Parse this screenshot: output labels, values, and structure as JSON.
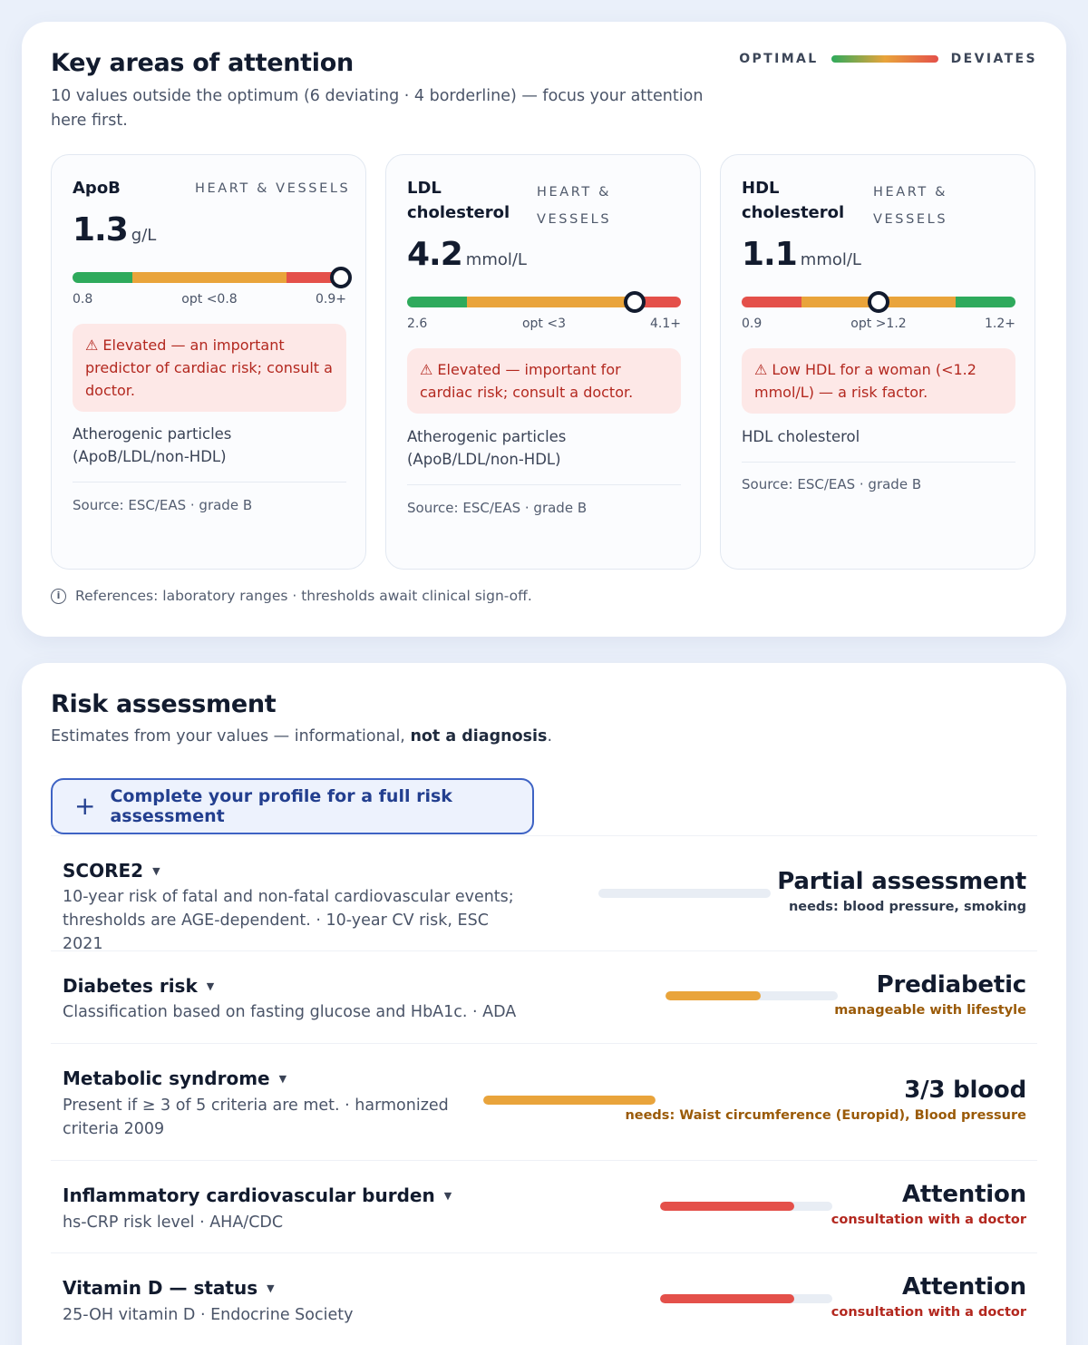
{
  "attention": {
    "title": "Key areas of attention",
    "subtitle": "10 values outside the optimum (6 deviating · 4 borderline) — focus your attention here first.",
    "legend": {
      "left": "OPTIMAL",
      "right": "DEVIATES"
    },
    "cards": [
      {
        "name": "ApoB",
        "category": "HEART & VESSELS",
        "value": "1.3",
        "unit": "g/L",
        "scale_min": "0.8",
        "scale_opt": "opt <0.8",
        "scale_max": "0.9+",
        "marker_fraction": 0.98,
        "alert": "⚠ Elevated — an important predictor of cardiac risk; consult a doctor.",
        "description": "Atherogenic particles (ApoB/LDL/non-HDL)",
        "source": "Source: ESC/EAS · grade B"
      },
      {
        "name": "LDL cholesterol",
        "category": "HEART & VESSELS",
        "value": "4.2",
        "unit": "mmol/L",
        "scale_min": "2.6",
        "scale_opt": "opt <3",
        "scale_max": "4.1+",
        "marker_fraction": 0.83,
        "alert": "⚠ Elevated — important for cardiac risk; consult a doctor.",
        "description": "Atherogenic particles (ApoB/LDL/non-HDL)",
        "source": "Source: ESC/EAS · grade B"
      },
      {
        "name": "HDL cholesterol",
        "category": "HEART & VESSELS",
        "value": "1.1",
        "unit": "mmol/L",
        "scale_min": "0.9",
        "scale_opt": "opt >1.2",
        "scale_max": "1.2+",
        "marker_fraction": 0.5,
        "alert": "⚠ Low HDL for a woman (<1.2 mmol/L) — a risk factor.",
        "description": "HDL cholesterol",
        "source": "Source: ESC/EAS · grade B"
      }
    ],
    "references": "References: laboratory ranges · thresholds await clinical sign-off."
  },
  "risk": {
    "title": "Risk assessment",
    "subtitle_pre": "Estimates from your values — informational, ",
    "subtitle_bold": "not a diagnosis",
    "subtitle_post": ".",
    "cta_label": "Complete your profile for a full risk assessment",
    "rows": [
      {
        "name": "SCORE2",
        "description": "10-year risk of fatal and non-fatal cardiovascular events; thresholds are AGE-dependent. · 10-year CV risk, ESC 2021",
        "status": "Partial assessment",
        "note": "needs: blood pressure, smoking",
        "fill_fraction": 0,
        "color": "#e8edf4",
        "note_color": "#2f3a4d"
      },
      {
        "name": "Diabetes risk",
        "description": "Classification based on fasting glucose and HbA1c. · ADA",
        "status": "Prediabetic",
        "note": "manageable with lifestyle",
        "fill_fraction": 0.55,
        "color": "#e9a43b",
        "note_color": "#9a5a08"
      },
      {
        "name": "Metabolic syndrome",
        "description": "Present if ≥ 3 of 5 criteria are met. · harmonized criteria 2009",
        "status": "3/3 blood",
        "note": "needs: Waist circumference (Europid), Blood pressure",
        "fill_fraction": 1.0,
        "color": "#e9a43b",
        "note_color": "#9a5a08"
      },
      {
        "name": "Inflammatory cardiovascular burden",
        "description": "hs-CRP risk level · AHA/CDC",
        "status": "Attention",
        "note": "consultation with a doctor",
        "fill_fraction": 0.78,
        "color": "#e4504a",
        "note_color": "#b3281f"
      },
      {
        "name": "Vitamin D — status",
        "description": "25-OH vitamin D · Endocrine Society",
        "status": "Attention",
        "note": "consultation with a doctor",
        "fill_fraction": 0.78,
        "color": "#e4504a",
        "note_color": "#b3281f"
      }
    ]
  }
}
